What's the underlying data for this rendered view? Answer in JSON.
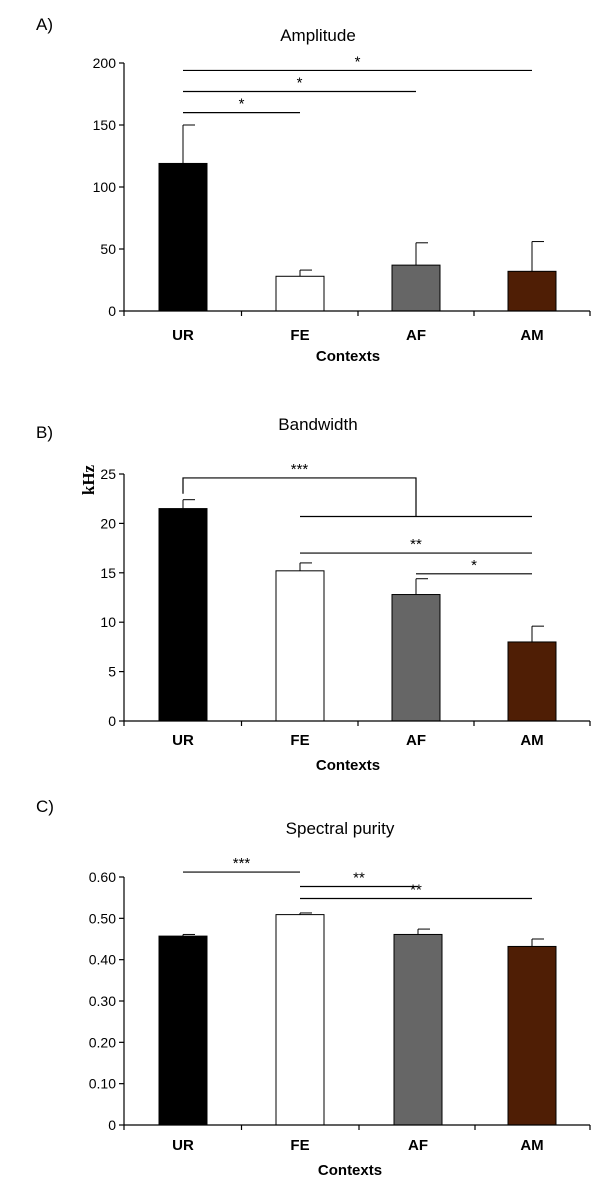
{
  "chart_data": [
    {
      "type": "bar",
      "panel": "A)",
      "title": "Amplitude",
      "xlabel": "Contexts",
      "ylabel": "",
      "categories": [
        "UR",
        "FE",
        "AF",
        "AM"
      ],
      "values": [
        119,
        28,
        37,
        32
      ],
      "errors": [
        31,
        5,
        18,
        24
      ],
      "colors": [
        "#000000",
        "#ffffff",
        "#666666",
        "#4f1e05"
      ],
      "ylim": [
        0,
        200
      ],
      "yticks": [
        0,
        50,
        100,
        150,
        200
      ],
      "ytick_labels": [
        "0",
        "50",
        "100",
        "150",
        "200"
      ],
      "significance": [
        {
          "from": 0,
          "to": 1,
          "y": 160,
          "label": "*"
        },
        {
          "from": 0,
          "to": 2,
          "y": 177,
          "label": "*"
        },
        {
          "from": 0,
          "to": 3,
          "y": 194,
          "label": "*"
        }
      ]
    },
    {
      "type": "bar",
      "panel": "B)",
      "title": "Bandwidth",
      "xlabel": "Contexts",
      "ylabel": "kHz",
      "categories": [
        "UR",
        "FE",
        "AF",
        "AM"
      ],
      "values": [
        21.5,
        15.2,
        12.8,
        8.0
      ],
      "errors": [
        0.9,
        0.8,
        1.6,
        1.6
      ],
      "colors": [
        "#000000",
        "#ffffff",
        "#666666",
        "#4f1e05"
      ],
      "ylim": [
        0,
        25
      ],
      "yticks": [
        0,
        5,
        10,
        15,
        20,
        25
      ],
      "ytick_labels": [
        "0",
        "5",
        "10",
        "15",
        "20",
        "25"
      ],
      "significance": [
        {
          "type": "group",
          "from": 0,
          "group": [
            1,
            3
          ],
          "center": 2,
          "top": 24.6,
          "y": 20.7,
          "label": "***"
        },
        {
          "from": 1,
          "to": 3,
          "y": 17.0,
          "label": "**"
        },
        {
          "from": 2,
          "to": 3,
          "y": 14.9,
          "label": "*"
        }
      ]
    },
    {
      "type": "bar",
      "panel": "C)",
      "title": "Spectral purity",
      "xlabel": "Contexts",
      "ylabel": "",
      "categories": [
        "UR",
        "FE",
        "AF",
        "AM"
      ],
      "values": [
        0.457,
        0.509,
        0.461,
        0.432
      ],
      "errors": [
        0.004,
        0.004,
        0.013,
        0.018
      ],
      "colors": [
        "#000000",
        "#ffffff",
        "#666666",
        "#4f1e05"
      ],
      "ylim": [
        0,
        0.6
      ],
      "yticks": [
        0,
        0.1,
        0.2,
        0.3,
        0.4,
        0.5,
        0.6
      ],
      "ytick_labels": [
        "0",
        "0.10",
        "0.20",
        "0.30",
        "0.40",
        "0.50",
        "0.60"
      ],
      "significance": [
        {
          "from": 0,
          "to": 1,
          "y": 0.612,
          "label": "***"
        },
        {
          "from": 1,
          "to": 2,
          "y": 0.577,
          "label": "**"
        },
        {
          "from": 1,
          "to": 3,
          "y": 0.548,
          "label": "**"
        }
      ]
    }
  ]
}
